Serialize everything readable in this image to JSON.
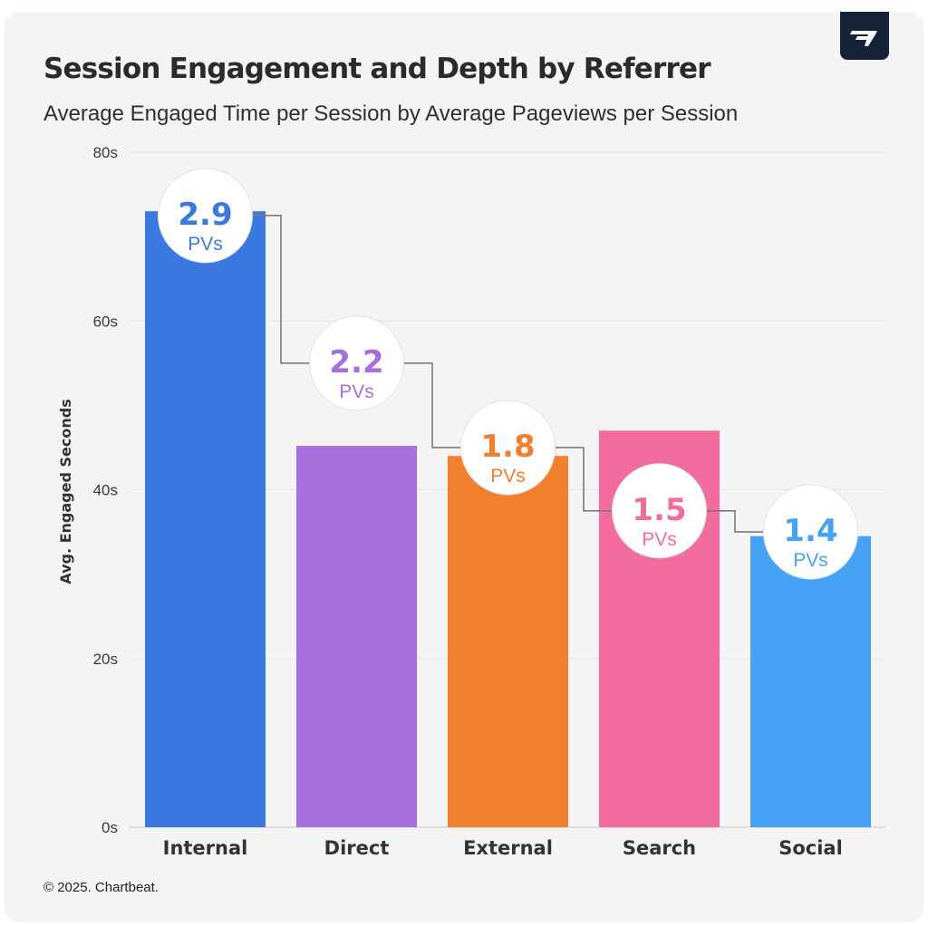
{
  "title": "Session Engagement and Depth by Referrer",
  "subtitle": "Average Engaged Time per Session by Average Pageviews per Session",
  "footer": "© 2025. Chartbeat.",
  "logo_icon": "chartbeat-logo-icon",
  "chart_data": {
    "type": "bar",
    "categories": [
      "Internal",
      "Direct",
      "External",
      "Search",
      "Social"
    ],
    "values": [
      73,
      45.2,
      44,
      47,
      34.5
    ],
    "colors": [
      "#3b78e0",
      "#a66fdb",
      "#f27f2e",
      "#f26d9e",
      "#45a2f5"
    ],
    "ylabel": "Avg. Engaged Seconds",
    "ylim": [
      0,
      80
    ],
    "yticks": [
      0,
      20,
      40,
      60,
      80
    ],
    "ytick_labels": [
      "0s",
      "20s",
      "40s",
      "60s",
      "80s"
    ],
    "grid": true,
    "pageviews": [
      2.9,
      2.2,
      1.8,
      1.5,
      1.4
    ],
    "pageviews_unit": "PVs",
    "pageviews_labels": [
      "2.9",
      "2.2",
      "1.8",
      "1.5",
      "1.4"
    ]
  }
}
